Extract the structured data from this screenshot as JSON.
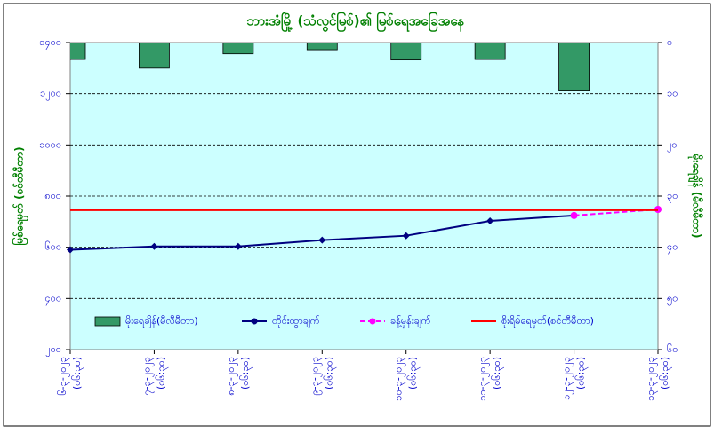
{
  "chart_data": {
    "type": "combo",
    "title": "ဘားအံမြို့ (သံလွင်မြစ်)၏ မြစ်ရေအခြေအနေ",
    "ylabel": "မြစ်ရေမှတ် (စင်တီမီတာ)",
    "y2label": "မိုးရေချိန် (မီလီမီတာ)",
    "categories": [
      "၆-၃-၂၀၂၃",
      "၇-၃-၂၀၂၃",
      "၈-၃-၂၀၂၃",
      "၉-၃-၂၀၂၃",
      "၁၀-၃-၂၀၂၃",
      "၁၁-၃-၂၀၂၃",
      "၁၂-၃-၂၀၂၃",
      "၁၃-၃-၂၀၂၃"
    ],
    "category_times": [
      "(၀၆:၃၀)",
      "(၀၆:၃၀)",
      "(၀၆:၃၀)",
      "(၀၆:၃၀)",
      "(၀၆:၃၀)",
      "(၀၆:၃၀)",
      "(၀၆:၃၀)",
      "(၀၆:၃၀)"
    ],
    "ylim": [
      200,
      1400
    ],
    "yticks": [
      {
        "value": 200,
        "label": "၂၀၀"
      },
      {
        "value": 400,
        "label": "၄၀၀"
      },
      {
        "value": 600,
        "label": "၆၀၀"
      },
      {
        "value": 800,
        "label": "၈၀၀"
      },
      {
        "value": 1000,
        "label": "၁၀၀၀"
      },
      {
        "value": 1200,
        "label": "၁၂၀၀"
      },
      {
        "value": 1400,
        "label": "၁၄၀၀"
      }
    ],
    "y2lim": [
      0,
      60
    ],
    "y2_inverted": true,
    "y2ticks": [
      {
        "value": 0,
        "label": "၀"
      },
      {
        "value": 10,
        "label": "၁၀"
      },
      {
        "value": 20,
        "label": "၂၀"
      },
      {
        "value": 30,
        "label": "၃၀"
      },
      {
        "value": 40,
        "label": "၄၀"
      },
      {
        "value": 50,
        "label": "၅၀"
      },
      {
        "value": 60,
        "label": "၆၀"
      }
    ],
    "grid": true,
    "legend": "bottom",
    "series": [
      {
        "name": "မိုးရေချိန်(မီလီမီတာ)",
        "type": "bar",
        "axis": "y2",
        "color": "#339966",
        "values": [
          3.3,
          5.0,
          2.2,
          1.4,
          3.4,
          3.3,
          9.3,
          null
        ]
      },
      {
        "name": "တိုင်းထွာချက်",
        "type": "line",
        "color": "#000080",
        "values": [
          590,
          603,
          603,
          628,
          645,
          703,
          724,
          null
        ]
      },
      {
        "name": "ခန့်မှန်းချက်",
        "type": "line",
        "dashed": true,
        "color": "#ff00ff",
        "values": [
          null,
          null,
          null,
          null,
          null,
          null,
          724,
          748
        ]
      },
      {
        "name": "စိုးရိမ်ရေမှတ်(စင်တီမီတာ)",
        "type": "hline",
        "color": "#ff0000",
        "value": 745
      }
    ]
  }
}
